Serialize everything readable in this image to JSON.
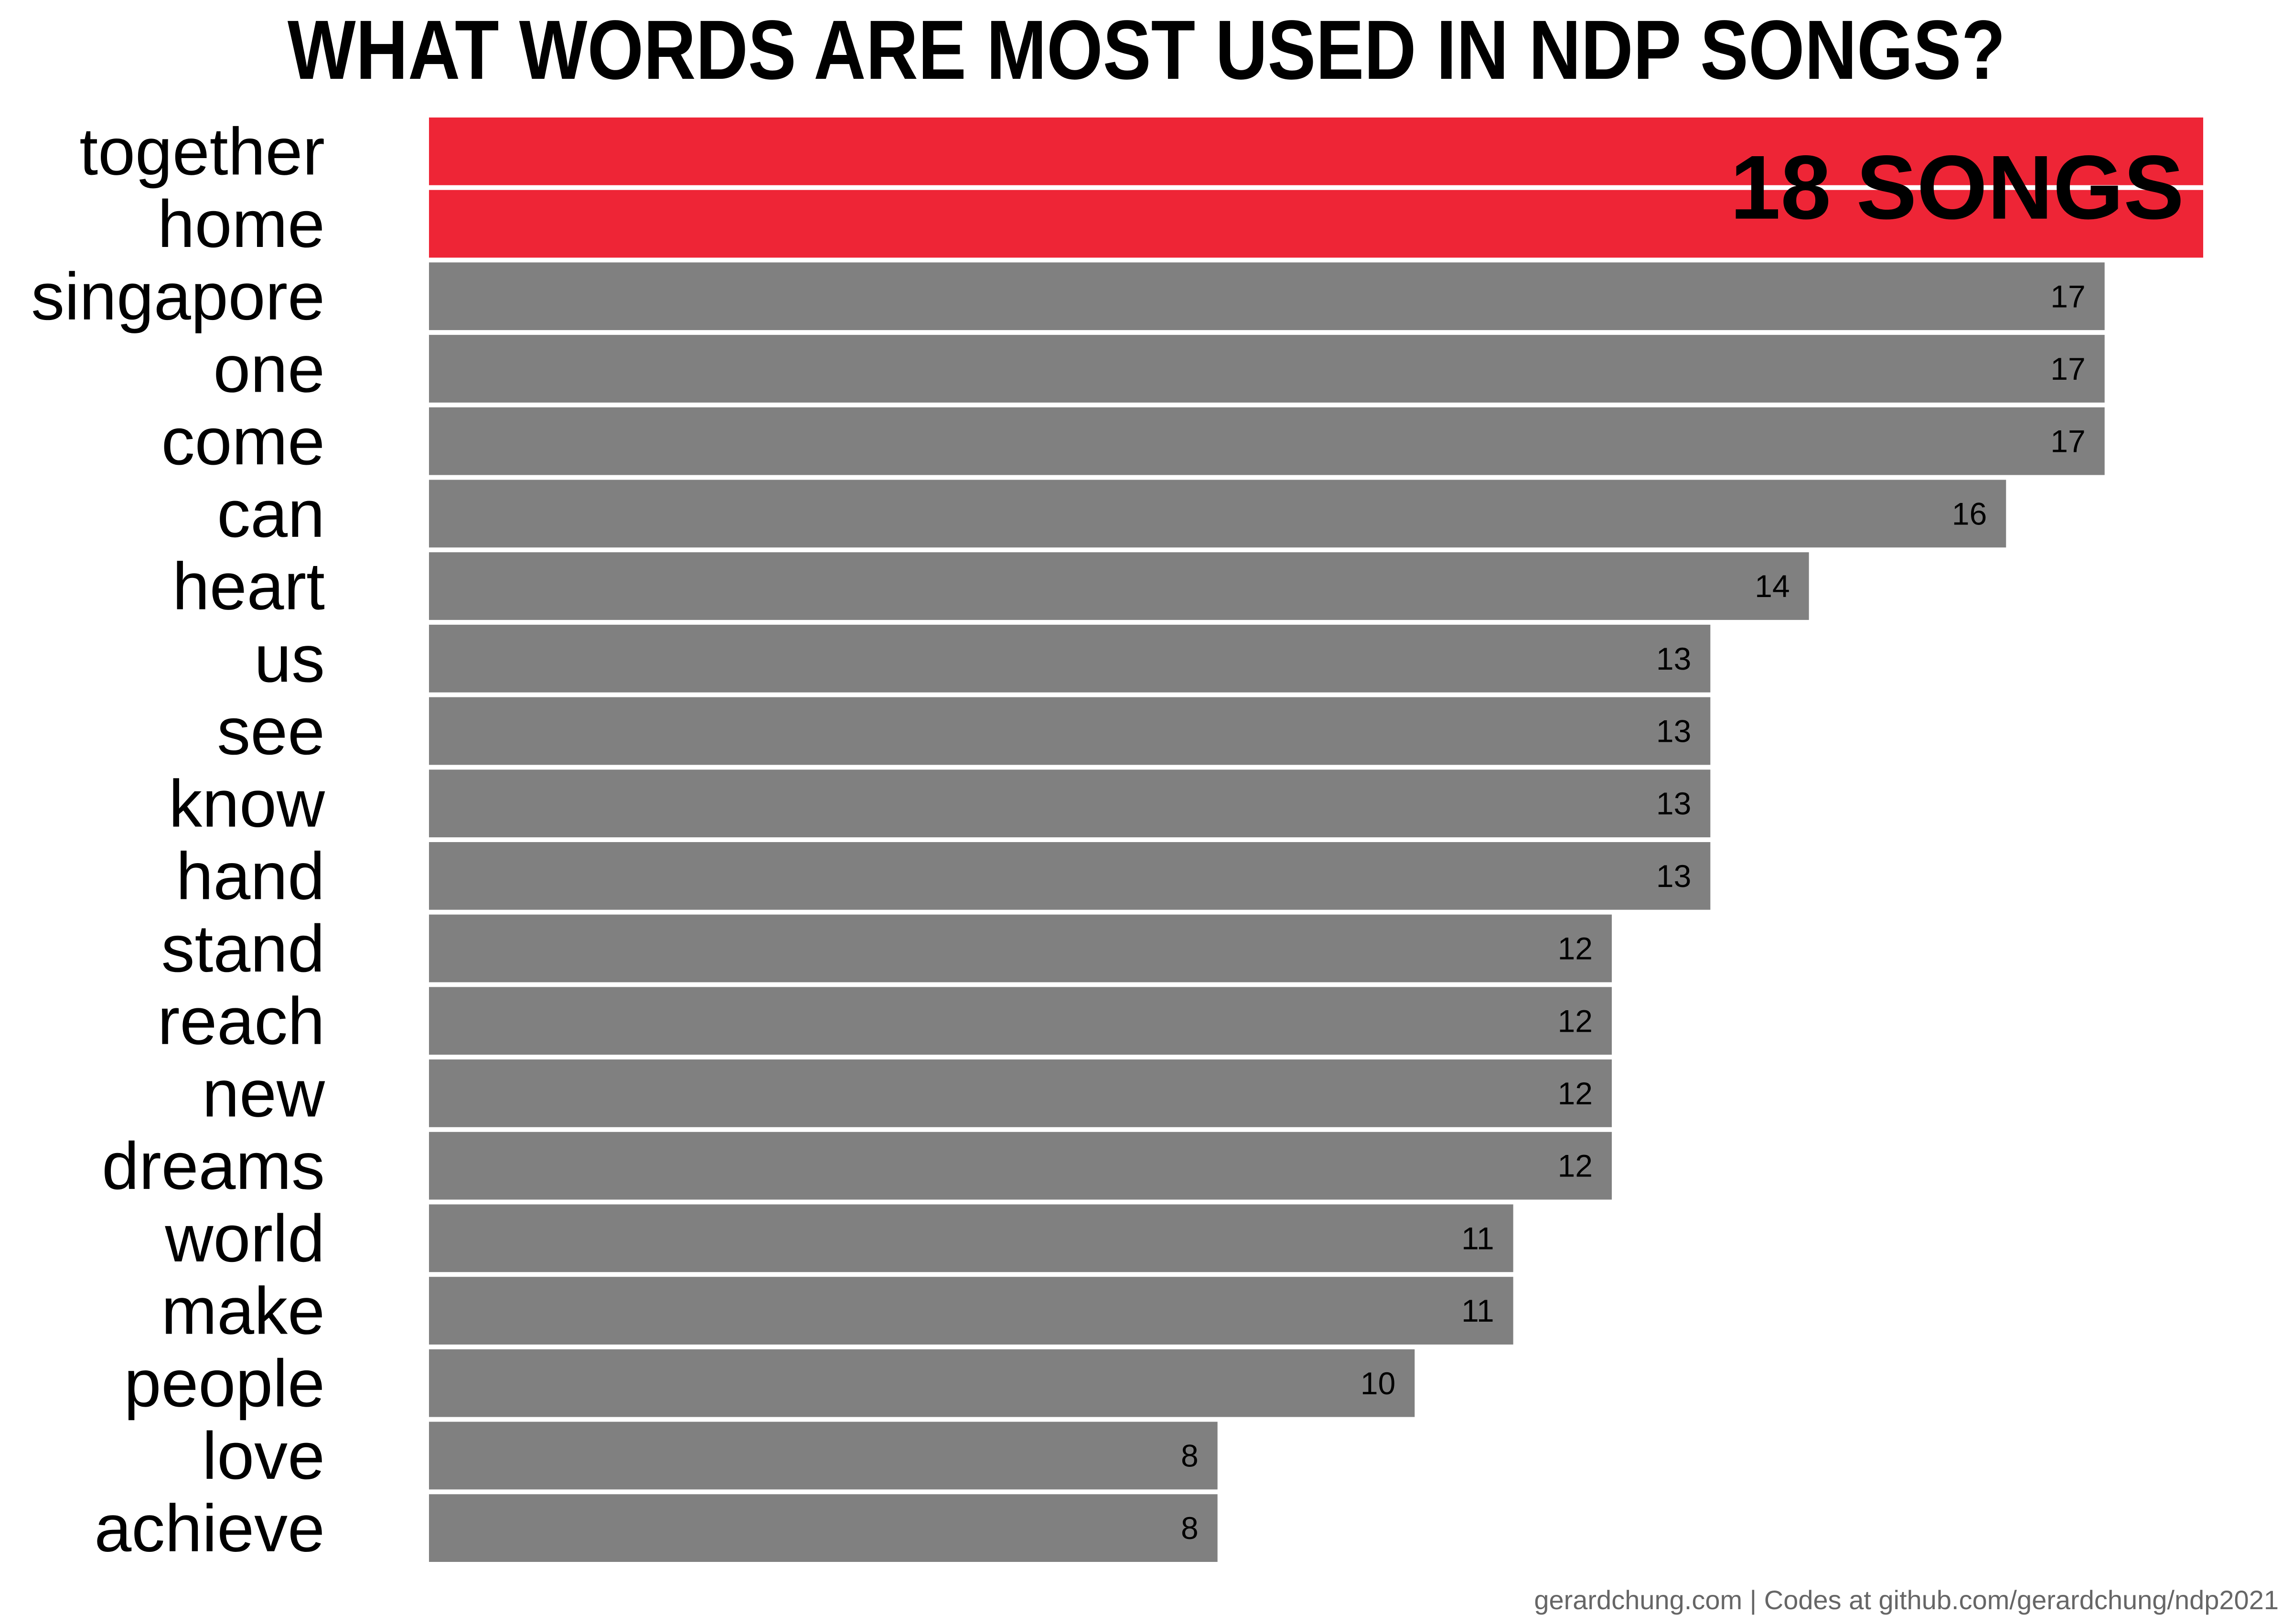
{
  "chart_data": {
    "type": "bar",
    "orientation": "horizontal",
    "title": "WHAT WORDS ARE MOST USED IN NDP SONGS?",
    "caption": "gerardchung.com | Codes at github.com/gerardchung/ndp2021",
    "highlight_label": "18 SONGS",
    "categories": [
      "together",
      "home",
      "singapore",
      "one",
      "come",
      "can",
      "heart",
      "us",
      "see",
      "know",
      "hand",
      "stand",
      "reach",
      "new",
      "dreams",
      "world",
      "make",
      "people",
      "love",
      "achieve"
    ],
    "values": [
      18,
      18,
      17,
      17,
      17,
      16,
      14,
      13,
      13,
      13,
      13,
      12,
      12,
      12,
      12,
      11,
      11,
      10,
      8,
      8
    ],
    "highlight": [
      true,
      true,
      false,
      false,
      false,
      false,
      false,
      false,
      false,
      false,
      false,
      false,
      false,
      false,
      false,
      false,
      false,
      false,
      false,
      false
    ],
    "value_labels": [
      "",
      "",
      "17",
      "17",
      "17",
      "16",
      "14",
      "13",
      "13",
      "13",
      "13",
      "12",
      "12",
      "12",
      "12",
      "11",
      "11",
      "10",
      "8",
      "8"
    ],
    "xlim": [
      0,
      18
    ],
    "grid": false,
    "legend": "none",
    "colors": {
      "highlight": "#EE2536",
      "default": "#808080",
      "text": "#000000"
    }
  }
}
